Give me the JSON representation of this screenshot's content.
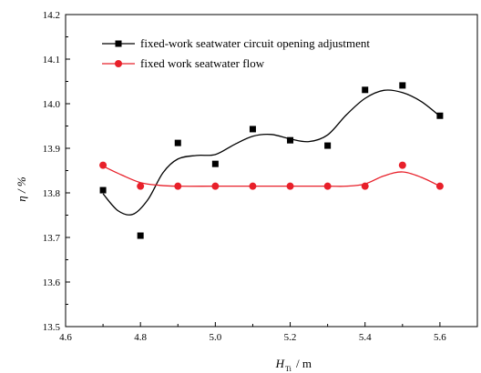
{
  "chart_data": {
    "type": "scatter",
    "xlabel": "H",
    "xlabel_sub": "Ti",
    "xlabel_unit": "/ m",
    "ylabel": "η / %",
    "xlim": [
      4.6,
      5.7
    ],
    "ylim": [
      13.5,
      14.2
    ],
    "x_ticks": [
      "4.6",
      "4.8",
      "5.0",
      "5.2",
      "5.4",
      "5.6"
    ],
    "y_ticks": [
      "13.5",
      "13.6",
      "13.7",
      "13.8",
      "13.9",
      "14.0",
      "14.1",
      "14.2"
    ],
    "legend_position": "top-left",
    "series": [
      {
        "name": "fixed-work seatwater circuit opening adjustment",
        "marker": "square",
        "color": "#000000",
        "points": [
          {
            "x": 4.7,
            "y": 13.806
          },
          {
            "x": 4.8,
            "y": 13.704
          },
          {
            "x": 4.9,
            "y": 13.912
          },
          {
            "x": 5.0,
            "y": 13.865
          },
          {
            "x": 5.1,
            "y": 13.943
          },
          {
            "x": 5.2,
            "y": 13.918
          },
          {
            "x": 5.3,
            "y": 13.906
          },
          {
            "x": 5.4,
            "y": 14.031
          },
          {
            "x": 5.5,
            "y": 14.041
          },
          {
            "x": 5.6,
            "y": 13.973
          }
        ],
        "fit_curve": [
          {
            "x": 4.7,
            "y": 13.798
          },
          {
            "x": 4.74,
            "y": 13.76
          },
          {
            "x": 4.78,
            "y": 13.752
          },
          {
            "x": 4.82,
            "y": 13.785
          },
          {
            "x": 4.86,
            "y": 13.845
          },
          {
            "x": 4.9,
            "y": 13.876
          },
          {
            "x": 4.95,
            "y": 13.884
          },
          {
            "x": 5.0,
            "y": 13.886
          },
          {
            "x": 5.05,
            "y": 13.908
          },
          {
            "x": 5.1,
            "y": 13.927
          },
          {
            "x": 5.15,
            "y": 13.931
          },
          {
            "x": 5.2,
            "y": 13.921
          },
          {
            "x": 5.25,
            "y": 13.915
          },
          {
            "x": 5.3,
            "y": 13.93
          },
          {
            "x": 5.35,
            "y": 13.975
          },
          {
            "x": 5.4,
            "y": 14.012
          },
          {
            "x": 5.45,
            "y": 14.03
          },
          {
            "x": 5.5,
            "y": 14.025
          },
          {
            "x": 5.55,
            "y": 14.005
          },
          {
            "x": 5.6,
            "y": 13.972
          }
        ]
      },
      {
        "name": "fixed work seatwater flow",
        "marker": "circle",
        "color": "#e8202a",
        "points": [
          {
            "x": 4.7,
            "y": 13.862
          },
          {
            "x": 4.8,
            "y": 13.815
          },
          {
            "x": 4.9,
            "y": 13.815
          },
          {
            "x": 5.0,
            "y": 13.815
          },
          {
            "x": 5.1,
            "y": 13.815
          },
          {
            "x": 5.2,
            "y": 13.815
          },
          {
            "x": 5.3,
            "y": 13.815
          },
          {
            "x": 5.4,
            "y": 13.815
          },
          {
            "x": 5.5,
            "y": 13.862
          },
          {
            "x": 5.6,
            "y": 13.815
          }
        ],
        "fit_curve": [
          {
            "x": 4.7,
            "y": 13.86
          },
          {
            "x": 4.75,
            "y": 13.84
          },
          {
            "x": 4.8,
            "y": 13.823
          },
          {
            "x": 4.85,
            "y": 13.817
          },
          {
            "x": 4.9,
            "y": 13.815
          },
          {
            "x": 5.0,
            "y": 13.815
          },
          {
            "x": 5.1,
            "y": 13.815
          },
          {
            "x": 5.2,
            "y": 13.815
          },
          {
            "x": 5.3,
            "y": 13.815
          },
          {
            "x": 5.35,
            "y": 13.815
          },
          {
            "x": 5.4,
            "y": 13.82
          },
          {
            "x": 5.45,
            "y": 13.838
          },
          {
            "x": 5.5,
            "y": 13.847
          },
          {
            "x": 5.55,
            "y": 13.835
          },
          {
            "x": 5.6,
            "y": 13.815
          }
        ]
      }
    ]
  }
}
